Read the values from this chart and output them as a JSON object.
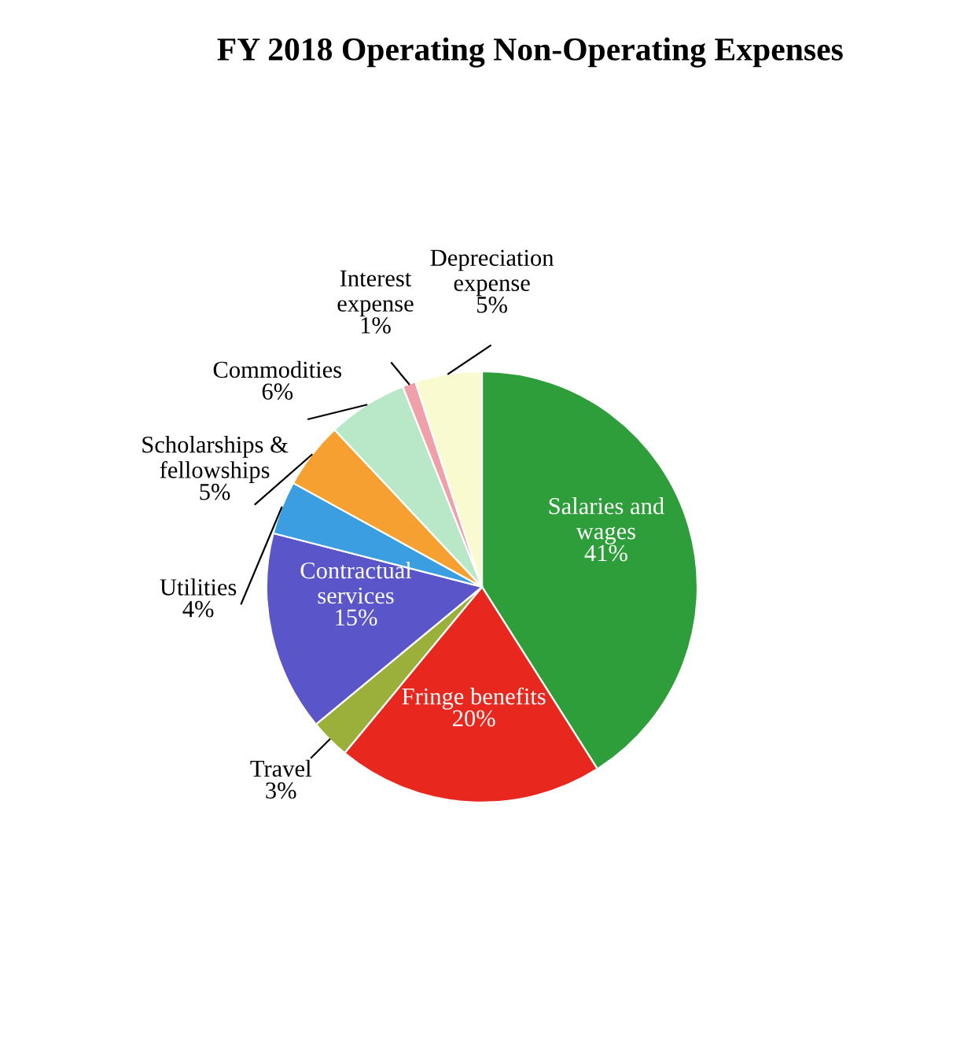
{
  "chart_data": {
    "type": "pie",
    "title": "FY 2018 Operating Non-Operating Expenses",
    "categories": [
      "Salaries and\nwages",
      "Fringe benefits",
      "Travel",
      "Contractual\nservices",
      "Utilities",
      "Scholarships &\nfellowships",
      "Commodities",
      "Interest\nexpense",
      "Depreciation\nexpense"
    ],
    "values": [
      41,
      20,
      3,
      15,
      4,
      5,
      6,
      1,
      5
    ],
    "value_labels": [
      "41%",
      "20%",
      "3%",
      "15%",
      "4%",
      "5%",
      "6%",
      "1%",
      "5%"
    ],
    "colors": [
      "#2e9e3a",
      "#e8281e",
      "#9ab03a",
      "#5a55c8",
      "#3a9ee0",
      "#f5a030",
      "#b8e8c8",
      "#f0a0a8",
      "#fafad0"
    ],
    "legend": false
  }
}
